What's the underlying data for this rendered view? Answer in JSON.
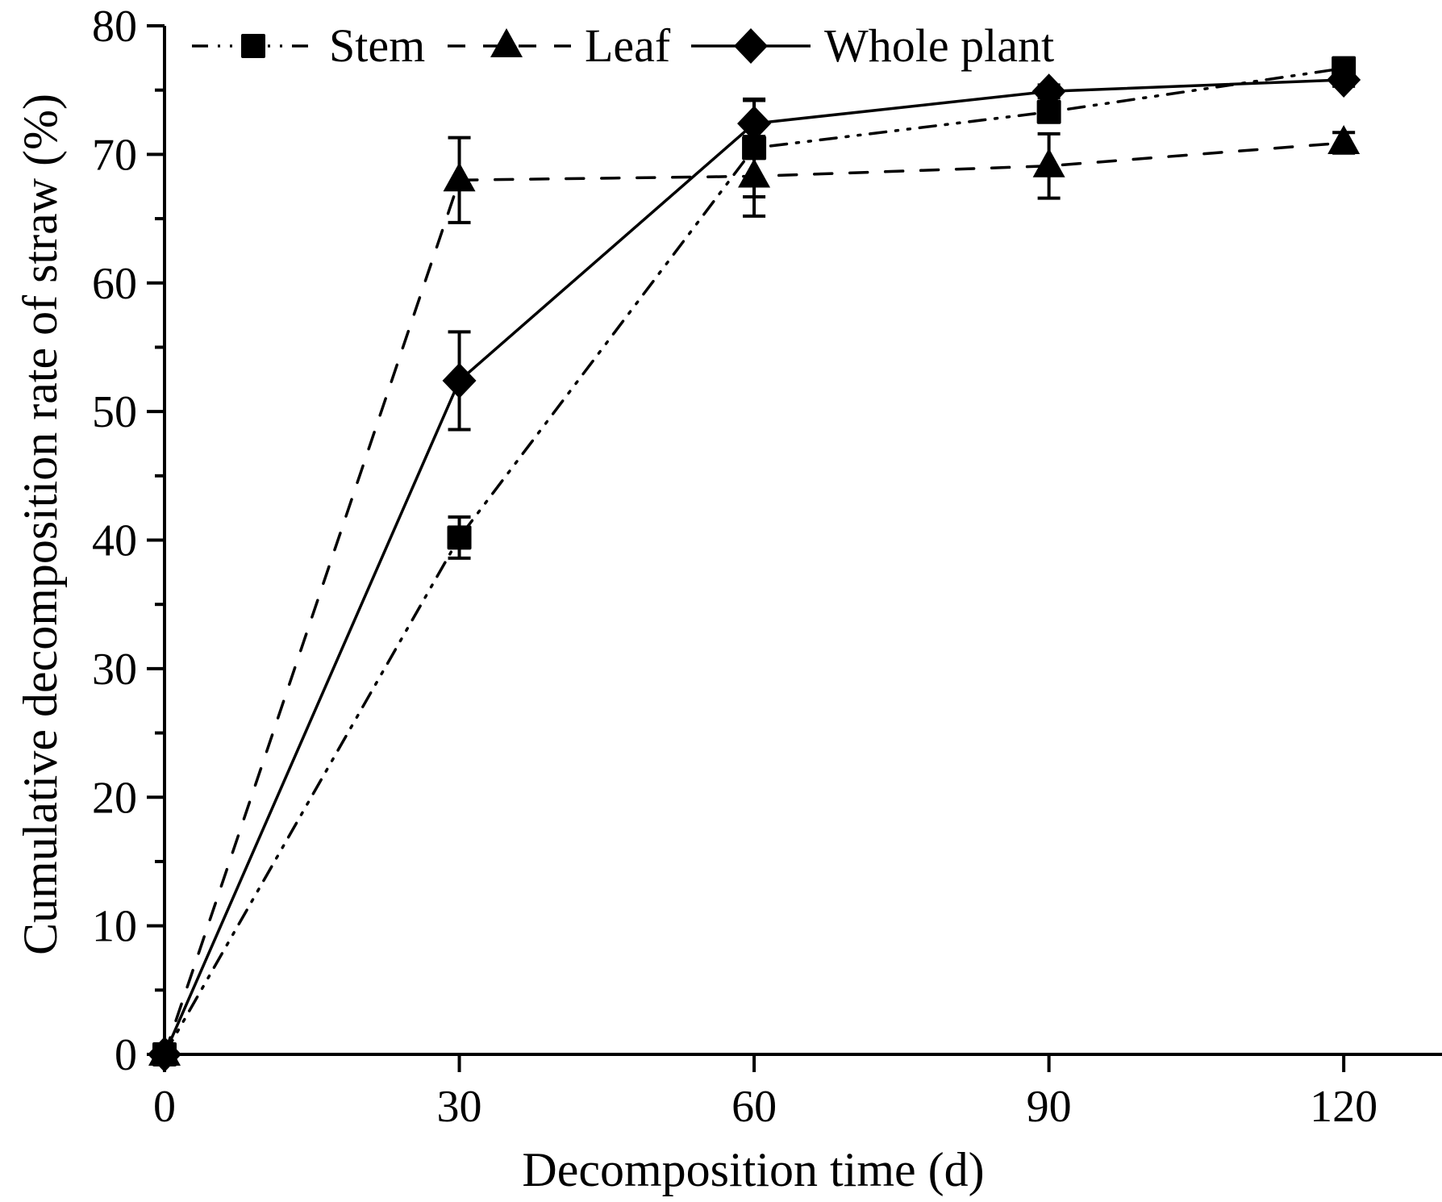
{
  "chart_data": {
    "type": "line",
    "title": "",
    "xlabel": "Decomposition time (d)",
    "ylabel": "Cumulative decomposition rate of straw (%)",
    "x": [
      0,
      30,
      60,
      90,
      120
    ],
    "xlim": [
      0,
      130
    ],
    "ylim": [
      0,
      80
    ],
    "xticks": [
      0,
      30,
      60,
      90,
      120
    ],
    "xtick_labels": [
      "0",
      "30",
      "60",
      "90",
      "120"
    ],
    "yticks": [
      0,
      10,
      20,
      30,
      40,
      50,
      60,
      70,
      80
    ],
    "ytick_labels": [
      "0",
      "10",
      "20",
      "30",
      "40",
      "50",
      "60",
      "70",
      "80"
    ],
    "yminor_step": 5,
    "grid": false,
    "legend_position": "top",
    "series": [
      {
        "name": "Stem",
        "marker": "square",
        "line_style": "dash-dot-dot",
        "color": "#000000",
        "values": [
          0,
          40.2,
          70.5,
          73.3,
          76.7
        ],
        "errors": [
          0,
          1.6,
          3.8,
          0.5,
          0.5
        ]
      },
      {
        "name": "Leaf",
        "marker": "triangle",
        "line_style": "dashed",
        "color": "#000000",
        "values": [
          0,
          68.0,
          68.3,
          69.1,
          70.9
        ],
        "errors": [
          0,
          3.3,
          3.1,
          2.5,
          0.8
        ]
      },
      {
        "name": "Whole plant",
        "marker": "diamond",
        "line_style": "solid",
        "color": "#000000",
        "values": [
          0,
          52.4,
          72.4,
          74.9,
          75.8
        ],
        "errors": [
          0,
          3.8,
          1.8,
          0.5,
          0.5
        ]
      }
    ]
  }
}
